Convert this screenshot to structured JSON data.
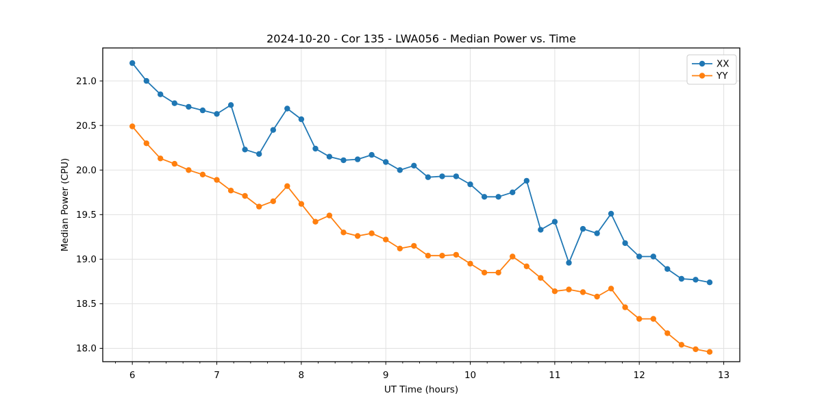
{
  "chart_data": {
    "type": "line",
    "title": "2024-10-20 - Cor 135 - LWA056 - Median Power vs. Time",
    "xlabel": "UT Time (hours)",
    "ylabel": "Median Power (CPU)",
    "xlim": [
      5.65,
      13.19
    ],
    "ylim": [
      17.85,
      21.37
    ],
    "x_major_ticks": [
      6,
      7,
      8,
      9,
      10,
      11,
      12,
      13
    ],
    "x_minor_step": 0.2,
    "y_major_ticks": [
      18.0,
      18.5,
      19.0,
      19.5,
      20.0,
      20.5,
      21.0
    ],
    "grid": true,
    "grid_color": "#e0e0e0",
    "legend": {
      "position": "upper right",
      "entries": [
        "XX",
        "YY"
      ]
    },
    "x": [
      6.0,
      6.167,
      6.333,
      6.5,
      6.667,
      6.833,
      7.0,
      7.167,
      7.333,
      7.5,
      7.667,
      7.833,
      8.0,
      8.167,
      8.333,
      8.5,
      8.667,
      8.833,
      9.0,
      9.167,
      9.333,
      9.5,
      9.667,
      9.833,
      10.0,
      10.167,
      10.333,
      10.5,
      10.667,
      10.833,
      11.0,
      11.167,
      11.333,
      11.5,
      11.667,
      11.833,
      12.0,
      12.167,
      12.333,
      12.5,
      12.667,
      12.833
    ],
    "series": [
      {
        "name": "XX",
        "color": "#1f77b4",
        "values": [
          21.2,
          21.0,
          20.85,
          20.75,
          20.71,
          20.67,
          20.63,
          20.73,
          20.23,
          20.18,
          20.45,
          20.69,
          20.57,
          20.24,
          20.15,
          20.11,
          20.12,
          20.17,
          20.09,
          20.0,
          20.05,
          19.92,
          19.93,
          19.93,
          19.84,
          19.7,
          19.7,
          19.75,
          19.88,
          19.33,
          19.42,
          18.96,
          19.34,
          19.29,
          19.51,
          19.18,
          19.03,
          19.03,
          18.89,
          18.78,
          18.77,
          18.74
        ]
      },
      {
        "name": "YY",
        "color": "#ff7f0e",
        "values": [
          20.49,
          20.3,
          20.13,
          20.07,
          20.0,
          19.95,
          19.89,
          19.77,
          19.71,
          19.59,
          19.65,
          19.82,
          19.62,
          19.42,
          19.49,
          19.3,
          19.26,
          19.29,
          19.22,
          19.12,
          19.15,
          19.04,
          19.04,
          19.05,
          18.95,
          18.85,
          18.85,
          19.03,
          18.92,
          18.79,
          18.64,
          18.66,
          18.63,
          18.58,
          18.67,
          18.46,
          18.33,
          18.33,
          18.17,
          18.04,
          17.99,
          17.96
        ]
      }
    ]
  }
}
